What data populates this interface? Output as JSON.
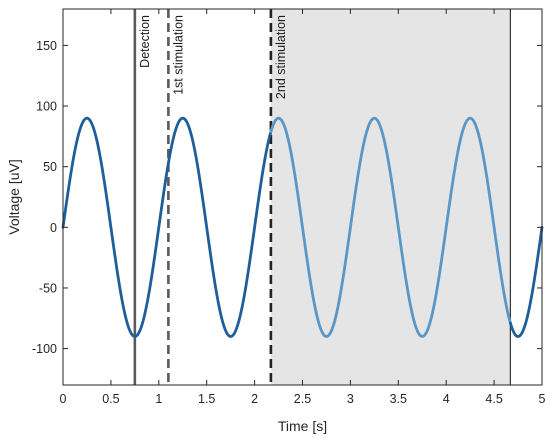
{
  "chart_data": {
    "type": "line",
    "title": "",
    "xlabel": "Time [s]",
    "ylabel": "Voltage [uV]",
    "xlim": [
      0,
      5
    ],
    "ylim": [
      -130,
      180
    ],
    "xticks": [
      0,
      0.5,
      1,
      1.5,
      2,
      2.5,
      3,
      3.5,
      4,
      4.5,
      5
    ],
    "xtick_labels": [
      "0",
      "0.5",
      "1",
      "1.5",
      "2",
      "2.5",
      "3",
      "3.5",
      "4",
      "4.5",
      "5"
    ],
    "yticks": [
      -100,
      -50,
      0,
      50,
      100,
      150
    ],
    "ytick_labels": [
      "-100",
      "-50",
      "0",
      "50",
      "100",
      "150"
    ],
    "grid": false,
    "series": [
      {
        "kind": "sine",
        "amplitude": 90,
        "frequency_hz": 1,
        "segments": [
          {
            "x_start": 0,
            "x_end": 2.17,
            "color": "#1f5f99"
          },
          {
            "x_start": 2.17,
            "x_end": 4.67,
            "color": "#5b97c6"
          },
          {
            "x_start": 4.67,
            "x_end": 5,
            "color": "#1f5f99"
          }
        ]
      }
    ],
    "shaded_region": {
      "x_start": 2.17,
      "x_end": 4.67,
      "color": "#e5e5e5",
      "edge_color": "#333333"
    },
    "vertical_markers": [
      {
        "x": 0.75,
        "label": "Detection",
        "style": "solid",
        "color": "#5a5a5a"
      },
      {
        "x": 1.1,
        "label": "1st stimulation",
        "style": "dashed",
        "color": "#5a5a5a"
      },
      {
        "x": 2.17,
        "label": "2nd stimulation",
        "style": "dashed",
        "color": "#222222"
      }
    ]
  }
}
